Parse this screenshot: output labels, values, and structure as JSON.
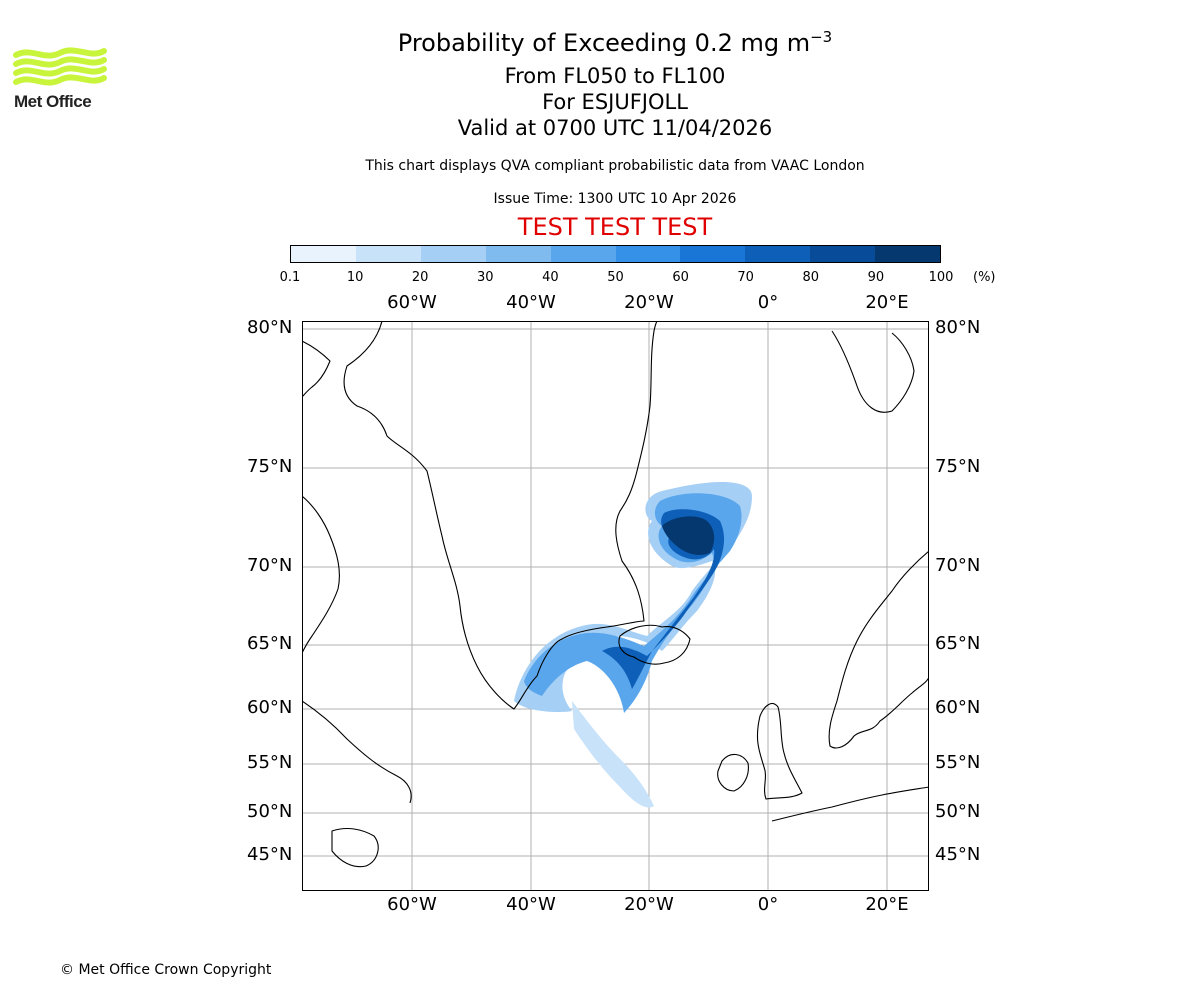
{
  "header": {
    "logo_text": "Met Office",
    "logo_color": "#c8f53c",
    "title_main": "Probability of Exceeding 0.2 mg m",
    "title_exp": "−3",
    "levels": "From FL050 to FL100",
    "volcano": "For ESJUFJOLL",
    "valid": "Valid at 0700 UTC 11/04/2026",
    "description": "This chart displays QVA compliant probabilistic data from VAAC London",
    "issue_time": "Issue Time: 1300 UTC 10 Apr 2026",
    "test_banner": "TEST TEST TEST",
    "test_color": "#e00000"
  },
  "colorbar": {
    "ticks": [
      "0.1",
      "10",
      "20",
      "30",
      "40",
      "50",
      "60",
      "70",
      "80",
      "90",
      "100"
    ],
    "unit": "(%)",
    "colors": [
      "#e8f3fd",
      "#c7e2f9",
      "#a5cff5",
      "#80bbf0",
      "#5aa6ec",
      "#3590e8",
      "#1a76d6",
      "#0e5fb8",
      "#084b98",
      "#05386f",
      "#03264b"
    ]
  },
  "map": {
    "lon_labels": [
      "60°W",
      "40°W",
      "20°W",
      "0°",
      "20°E"
    ],
    "lat_labels": [
      "80°N",
      "75°N",
      "70°N",
      "65°N",
      "60°N",
      "55°N",
      "50°N",
      "45°N"
    ]
  },
  "footer": {
    "copyright": "© Met Office Crown Copyright"
  }
}
